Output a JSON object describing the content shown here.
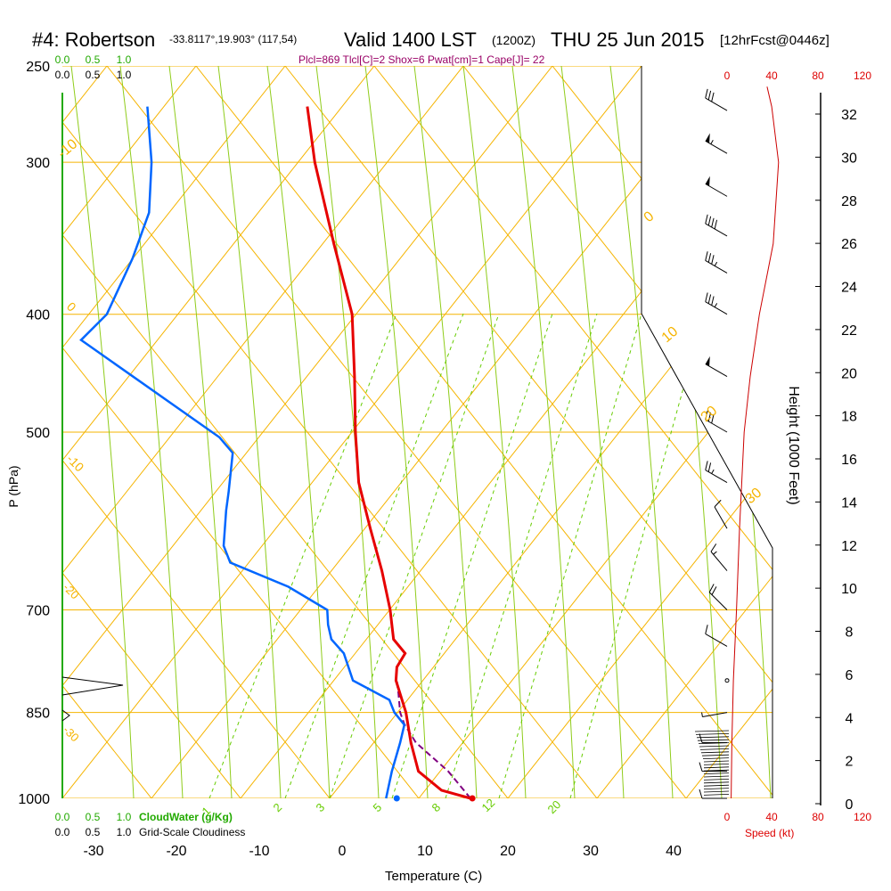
{
  "header": {
    "station": "#4: Robertson",
    "coords": "-33.8117°,19.903° (117,54)",
    "valid": "Valid 1400 LST",
    "utc": "(1200Z)",
    "date": "THU 25 Jun 2015",
    "forecast": "[12hrFcst@0446z]",
    "indices": "Plcl=869 Tlcl[C]=2 Shox=6 Pwat[cm]=1 Cape[J]= 22"
  },
  "colors": {
    "isobar": "#f5b400",
    "dry_adiabat": "#f5b400",
    "moist_adiabat": "#8fcc1a",
    "mixing_ratio": "#66cc00",
    "temperature": "#e60000",
    "dewpoint": "#0066ff",
    "parcel": "#800080",
    "wind_speed": "#cc0000",
    "cloud_water": "#22aa00"
  },
  "chart_data": {
    "type": "line",
    "xlabel": "Temperature (C)",
    "ylabel": "P (hPa)",
    "right_axis_label": "Height (1000 Feet)",
    "x_ticks": [
      -30,
      -20,
      -10,
      0,
      10,
      20,
      30,
      40
    ],
    "pressure_ticks": [
      250,
      300,
      400,
      500,
      700,
      850,
      1000
    ],
    "height_ticks": [
      0,
      2,
      4,
      6,
      8,
      10,
      12,
      14,
      16,
      18,
      20,
      22,
      24,
      26,
      28,
      30,
      32
    ],
    "x_range": [
      -34,
      52
    ],
    "pressure_range": [
      1000,
      250
    ],
    "skew_deg_per_log": 0,
    "series": [
      {
        "name": "temperature",
        "points": [
          [
            1000,
            15.5
          ],
          [
            985,
            12.0
          ],
          [
            950,
            9.2
          ],
          [
            900,
            8.3
          ],
          [
            850,
            7.7
          ],
          [
            800,
            6.5
          ],
          [
            780,
            6.6
          ],
          [
            760,
            7.6
          ],
          [
            740,
            6.2
          ],
          [
            720,
            6.0
          ],
          [
            700,
            5.8
          ],
          [
            650,
            4.8
          ],
          [
            600,
            3.4
          ],
          [
            550,
            2.0
          ],
          [
            500,
            1.6
          ],
          [
            450,
            1.5
          ],
          [
            400,
            1.2
          ],
          [
            350,
            -1.0
          ],
          [
            300,
            -3.3
          ],
          [
            270,
            -4.2
          ]
        ]
      },
      {
        "name": "dewpoint",
        "points": [
          [
            1000,
            5.3
          ],
          [
            950,
            6.0
          ],
          [
            900,
            7.0
          ],
          [
            870,
            7.5
          ],
          [
            850,
            6.3
          ],
          [
            830,
            5.7
          ],
          [
            800,
            1.3
          ],
          [
            760,
            0.2
          ],
          [
            740,
            -1.3
          ],
          [
            720,
            -1.7
          ],
          [
            700,
            -1.8
          ],
          [
            670,
            -6.5
          ],
          [
            640,
            -13.5
          ],
          [
            620,
            -14.3
          ],
          [
            580,
            -14.0
          ],
          [
            560,
            -13.7
          ],
          [
            520,
            -13.2
          ],
          [
            505,
            -14.8
          ],
          [
            420,
            -31.5
          ],
          [
            400,
            -28.4
          ],
          [
            360,
            -25.3
          ],
          [
            330,
            -23.3
          ],
          [
            300,
            -23.0
          ],
          [
            270,
            -23.5
          ]
        ]
      },
      {
        "name": "parcel",
        "points": [
          [
            1000,
            15.5
          ],
          [
            950,
            12.8
          ],
          [
            900,
            8.9
          ],
          [
            869,
            7.5
          ],
          [
            850,
            7.0
          ],
          [
            820,
            6.8
          ],
          [
            790,
            6.5
          ]
        ]
      }
    ],
    "dry_adiabats_labels": [
      "-10",
      "0",
      "10",
      "20",
      "30"
    ],
    "isotherm_labels": [
      "10",
      "0",
      "-10",
      "-20",
      "-30"
    ],
    "mixing_ratio_labels": [
      "1",
      "2",
      "3",
      "5",
      "8",
      "12",
      "20"
    ],
    "speed_axis_ticks": [
      0,
      40,
      80,
      120
    ],
    "speed_axis_label": "Speed (kt)",
    "cloud_water_ticks": [
      "0.0",
      "0.5",
      "1.0"
    ],
    "cloud_water_label": "CloudWater (g/Kg)",
    "cloudiness_ticks": [
      "0.0",
      "0.5",
      "1.0"
    ],
    "cloudiness_label": "Grid-Scale Cloudiness",
    "winds": [
      {
        "p": 1000,
        "speed": 14,
        "dir": 270
      },
      {
        "p": 950,
        "speed": 12,
        "dir": 270
      },
      {
        "p": 900,
        "speed": 10,
        "dir": 270
      },
      {
        "p": 850,
        "speed": 8,
        "dir": 260
      },
      {
        "p": 800,
        "speed": 3,
        "dir": 250
      },
      {
        "p": 750,
        "speed": 10,
        "dir": 300
      },
      {
        "p": 700,
        "speed": 20,
        "dir": 315
      },
      {
        "p": 650,
        "speed": 18,
        "dir": 320
      },
      {
        "p": 600,
        "speed": 10,
        "dir": 330
      },
      {
        "p": 550,
        "speed": 25,
        "dir": 300
      },
      {
        "p": 500,
        "speed": 30,
        "dir": 300
      },
      {
        "p": 450,
        "speed": 50,
        "dir": 300
      },
      {
        "p": 400,
        "speed": 35,
        "dir": 300
      },
      {
        "p": 370,
        "speed": 35,
        "dir": 300
      },
      {
        "p": 345,
        "speed": 40,
        "dir": 300
      },
      {
        "p": 320,
        "speed": 50,
        "dir": 300
      },
      {
        "p": 295,
        "speed": 55,
        "dir": 300
      },
      {
        "p": 272,
        "speed": 30,
        "dir": 300
      }
    ],
    "wind_speed_profile": [
      [
        1000,
        3
      ],
      [
        900,
        4
      ],
      [
        800,
        6
      ],
      [
        700,
        10
      ],
      [
        600,
        14
      ],
      [
        500,
        20
      ],
      [
        450,
        28
      ],
      [
        400,
        40
      ],
      [
        350,
        58
      ],
      [
        300,
        65
      ],
      [
        270,
        56
      ],
      [
        260,
        50
      ]
    ]
  }
}
